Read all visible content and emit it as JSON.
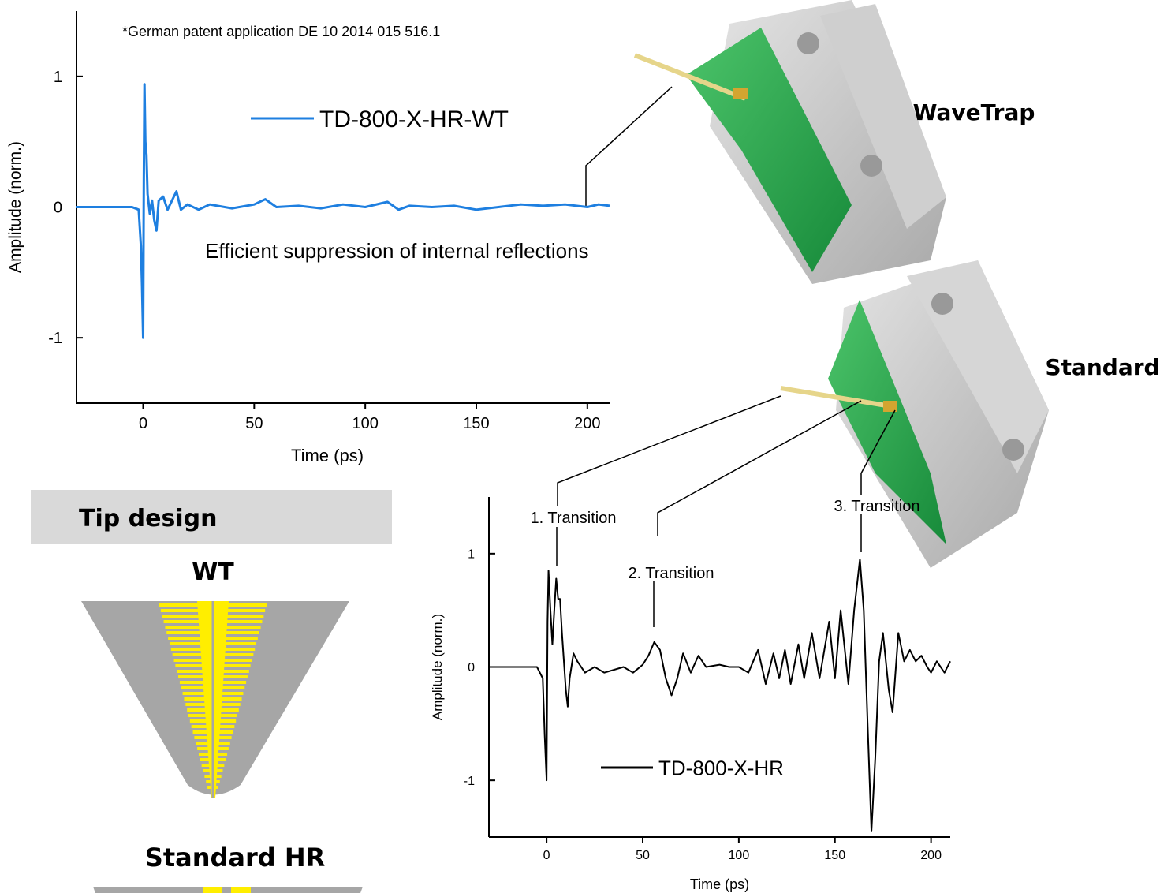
{
  "chart_data": [
    {
      "type": "line",
      "xlabel": "Time (ps)",
      "ylabel": "Amplitude (norm.)",
      "xlim": [
        -30,
        210
      ],
      "ylim": [
        -1.5,
        1.5
      ],
      "xticks": [
        0,
        50,
        100,
        150,
        200
      ],
      "yticks": [
        -1,
        0,
        1
      ],
      "annotations": [
        "*German patent application DE 10 2014 015 516.1",
        "Efficient suppression of internal reflections"
      ],
      "series": [
        {
          "name": "TD-800-X-HR-WT",
          "color": "#1e7fe0",
          "x": [
            -30,
            -5,
            -2,
            -1,
            -0.5,
            0,
            0.3,
            0.6,
            1,
            1.5,
            2,
            3,
            4,
            5,
            6,
            7,
            9,
            11,
            13,
            15,
            17,
            20,
            25,
            30,
            40,
            50,
            55,
            60,
            70,
            80,
            90,
            100,
            110,
            115,
            120,
            130,
            140,
            150,
            160,
            170,
            180,
            190,
            200,
            205,
            210
          ],
          "values": [
            0,
            0,
            -0.02,
            -0.3,
            -0.6,
            -1.0,
            0.2,
            0.94,
            0.5,
            0.4,
            0.1,
            -0.05,
            0.05,
            -0.1,
            -0.18,
            0.05,
            0.08,
            -0.02,
            0.05,
            0.12,
            -0.02,
            0.02,
            -0.02,
            0.02,
            -0.01,
            0.02,
            0.06,
            0,
            0.01,
            -0.01,
            0.02,
            0,
            0.04,
            -0.02,
            0.01,
            0,
            0.01,
            -0.02,
            0,
            0.02,
            0.01,
            0.02,
            0,
            0.02,
            0.01
          ]
        }
      ]
    },
    {
      "type": "line",
      "xlabel": "Time (ps)",
      "ylabel": "Amplitude (norm.)",
      "xlim": [
        -30,
        210
      ],
      "ylim": [
        -1.5,
        1.5
      ],
      "xticks": [
        0,
        50,
        100,
        150,
        200
      ],
      "yticks": [
        -1,
        0,
        1
      ],
      "annotations": [
        "1. Transition",
        "2. Transition",
        "3. Transition"
      ],
      "series": [
        {
          "name": "TD-800-X-HR",
          "color": "#000000",
          "x": [
            -30,
            -5,
            -2,
            -1,
            0,
            0.5,
            1,
            2,
            3,
            4,
            5,
            6,
            7,
            8,
            10,
            11,
            12,
            14,
            16,
            20,
            25,
            30,
            40,
            45,
            50,
            53,
            56,
            59,
            62,
            65,
            68,
            71,
            75,
            79,
            83,
            90,
            95,
            100,
            105,
            110,
            114,
            118,
            121,
            124,
            127,
            131,
            134,
            138,
            142,
            147,
            150,
            153,
            157,
            160,
            163,
            165,
            167,
            169,
            171,
            173,
            175,
            178,
            180,
            183,
            186,
            189,
            192,
            195,
            198,
            200,
            203,
            207,
            210
          ],
          "values": [
            0,
            0,
            -0.1,
            -0.6,
            -1.0,
            0.4,
            0.85,
            0.5,
            0.2,
            0.5,
            0.78,
            0.6,
            0.6,
            0.3,
            -0.2,
            -0.35,
            -0.1,
            0.12,
            0.05,
            -0.05,
            0,
            -0.05,
            0,
            -0.05,
            0.02,
            0.1,
            0.22,
            0.15,
            -0.1,
            -0.25,
            -0.1,
            0.12,
            -0.05,
            0.1,
            0,
            0.02,
            0,
            0,
            -0.05,
            0.15,
            -0.15,
            0.12,
            -0.1,
            0.15,
            -0.15,
            0.2,
            -0.1,
            0.3,
            -0.1,
            0.4,
            -0.1,
            0.5,
            -0.15,
            0.5,
            0.95,
            0.5,
            -0.5,
            -1.45,
            -0.8,
            0.05,
            0.3,
            -0.2,
            -0.4,
            0.3,
            0.05,
            0.15,
            0.05,
            0.1,
            0,
            -0.05,
            0.05,
            -0.05,
            0.05
          ]
        }
      ]
    }
  ],
  "photo_labels": [
    "WaveTrap",
    "Standard"
  ],
  "tip_design": {
    "title": "Tip design",
    "wt_label": "WT",
    "standard_label": "Standard HR"
  }
}
